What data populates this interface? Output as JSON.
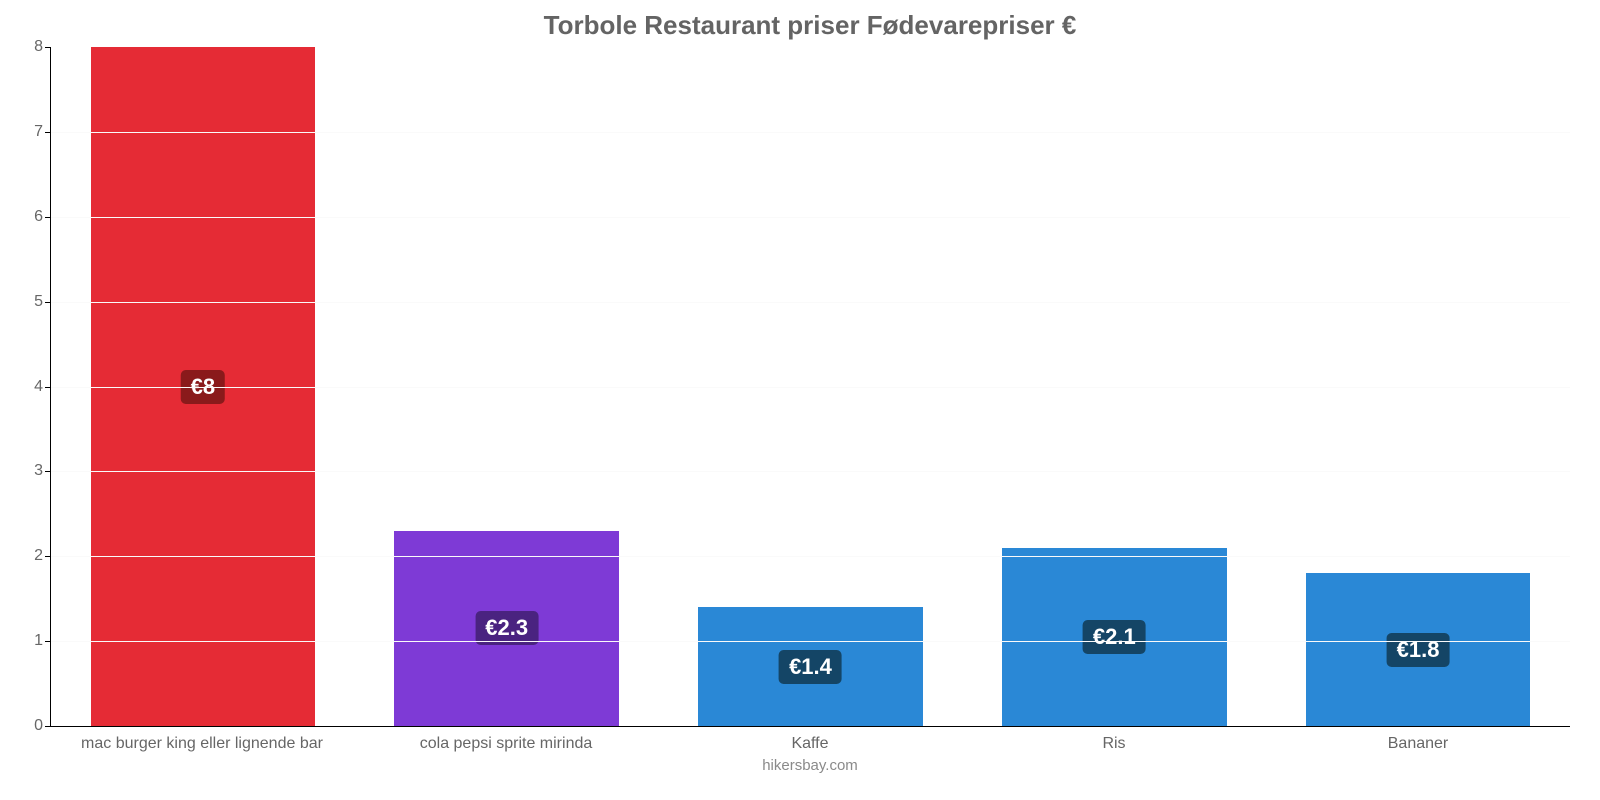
{
  "chart": {
    "type": "bar",
    "title": "Torbole Restaurant priser Fødevarepriser €",
    "title_fontsize": 26,
    "title_color": "#646464",
    "attribution": "hikersbay.com",
    "attribution_color": "#8a8a8a",
    "background_color": "#ffffff",
    "axis_color": "#000000",
    "grid_color": "#fafafa",
    "x_label_color": "#666666",
    "x_label_fontsize": 16,
    "y_label_color": "#666666",
    "y_label_fontsize": 16,
    "ylim": [
      0,
      8
    ],
    "ytick_step": 1,
    "yticks": [
      0,
      1,
      2,
      3,
      4,
      5,
      6,
      7,
      8
    ],
    "bar_width": 0.74,
    "value_label_fontsize": 22,
    "value_label_text_color": "#ffffff",
    "categories": [
      "mac burger king eller lignende bar",
      "cola pepsi sprite mirinda",
      "Kaffe",
      "Ris",
      "Bananer"
    ],
    "values": [
      8,
      2.3,
      1.4,
      2.1,
      1.8
    ],
    "value_labels": [
      "€8",
      "€2.3",
      "€1.4",
      "€2.1",
      "€1.8"
    ],
    "bar_colors": [
      "#e52b35",
      "#7e3ad6",
      "#2a88d6",
      "#2a88d6",
      "#2a88d6"
    ],
    "badge_colors": [
      "#8a1a1b",
      "#4a2380",
      "#144566",
      "#144566",
      "#144566"
    ]
  }
}
